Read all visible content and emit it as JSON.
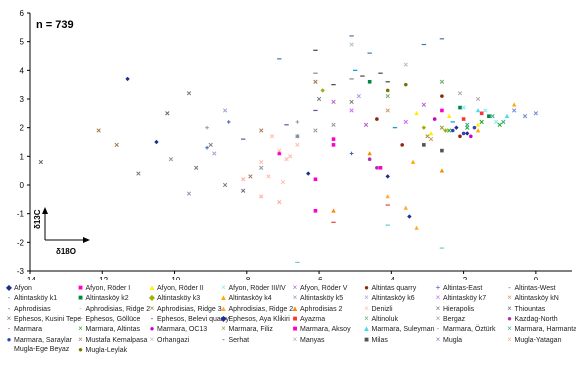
{
  "chart_data": {
    "type": "scatter",
    "annotation": "n = 739",
    "axis_key": {
      "y": "δ13C",
      "x": "δ18O"
    },
    "xlim": [
      -14,
      1
    ],
    "ylim": [
      -3,
      6
    ],
    "x_ticks": [
      "-14",
      "-12",
      "-10",
      "-8",
      "-6",
      "-4",
      "-2",
      "0"
    ],
    "y_ticks": [
      "-3",
      "-2",
      "-1",
      "0",
      "1",
      "2",
      "3",
      "4",
      "5",
      "6"
    ],
    "grid": false,
    "legend_position": "bottom",
    "series": [
      {
        "name": "Afyon",
        "color": "#1f2f8f",
        "marker": "◆",
        "points": [
          [
            -11.3,
            3.7
          ],
          [
            -10.5,
            1.5
          ],
          [
            -6.3,
            0.4
          ],
          [
            -3.5,
            -1.1
          ],
          [
            -4.1,
            0.3
          ]
        ]
      },
      {
        "name": "Afyon, Röder I",
        "color": "#ff00cc",
        "marker": "■",
        "points": [
          [
            -6.1,
            0.2
          ],
          [
            -5.6,
            1.6
          ],
          [
            -7.1,
            1.1
          ],
          [
            -4.3,
            0.6
          ]
        ]
      },
      {
        "name": "Afyon, Röder II",
        "color": "#ffee00",
        "marker": "▲",
        "points": [
          [
            -2.4,
            2.4
          ],
          [
            -1.6,
            2.1
          ],
          [
            -2.9,
            1.8
          ],
          [
            -3.3,
            2.5
          ]
        ]
      },
      {
        "name": "Afyon, Röder III/IV",
        "color": "#7fe7ff",
        "marker": "×",
        "points": [
          [
            -1.4,
            2.6
          ],
          [
            -1.1,
            2.2
          ],
          [
            -2.0,
            2.7
          ]
        ]
      },
      {
        "name": "Afyon, Röder V",
        "color": "#b05fd0",
        "marker": "×",
        "points": [
          [
            -4.7,
            2.1
          ],
          [
            -3.1,
            2.8
          ],
          [
            -5.6,
            2.9
          ]
        ]
      },
      {
        "name": "Altintas quarry",
        "color": "#8b2a0a",
        "marker": "●",
        "points": [
          [
            -2.6,
            3.1
          ],
          [
            -3.7,
            1.4
          ],
          [
            -4.4,
            2.3
          ],
          [
            -2.1,
            1.7
          ]
        ]
      },
      {
        "name": "Altintas-East",
        "color": "#3d5ebf",
        "marker": "+",
        "points": [
          [
            -6.6,
            1.7
          ],
          [
            -9.1,
            1.3
          ],
          [
            -5.1,
            1.1
          ],
          [
            -8.5,
            2.2
          ]
        ]
      },
      {
        "name": "Altintas-West",
        "color": "#7a4a9c",
        "marker": "-",
        "points": [
          [
            -6.9,
            2.1
          ],
          [
            -6.1,
            2.6
          ],
          [
            -8.1,
            1.6
          ]
        ]
      },
      {
        "name": "Altintasköy k1",
        "color": "#0099dd",
        "marker": "-",
        "points": [
          [
            -3.9,
            2.0
          ],
          [
            -2.3,
            2.2
          ],
          [
            -5.0,
            4.0
          ]
        ]
      },
      {
        "name": "Altintasköy k2",
        "color": "#008844",
        "marker": "■",
        "points": [
          [
            -2.1,
            2.7
          ],
          [
            -1.3,
            2.4
          ],
          [
            -4.6,
            3.6
          ]
        ]
      },
      {
        "name": "Altintasköy k3",
        "color": "#a0b000",
        "marker": "◆",
        "points": [
          [
            -3.1,
            2.0
          ],
          [
            -2.5,
            1.9
          ],
          [
            -5.9,
            3.3
          ]
        ]
      },
      {
        "name": "Altintasköy k4",
        "color": "#ffaa00",
        "marker": "▲",
        "points": [
          [
            -1.6,
            1.9
          ],
          [
            -3.4,
            0.8
          ],
          [
            -0.6,
            2.8
          ]
        ]
      },
      {
        "name": "Altintasköy k5",
        "color": "#8899aa",
        "marker": "×",
        "points": [
          [
            -10.1,
            0.9
          ],
          [
            -7.6,
            0.6
          ],
          [
            -9.6,
            -0.3
          ]
        ]
      },
      {
        "name": "Altintasköy k6",
        "color": "#aa99dd",
        "marker": "×",
        "points": [
          [
            -8.6,
            2.6
          ],
          [
            -4.9,
            3.1
          ],
          [
            -8.9,
            1.1
          ]
        ]
      },
      {
        "name": "Altintasköy k7",
        "color": "#cc66ff",
        "marker": "×",
        "points": [
          [
            -5.1,
            2.6
          ],
          [
            -3.6,
            2.2
          ]
        ]
      },
      {
        "name": "Altintasköy kN",
        "color": "#cc9966",
        "marker": "×",
        "points": [
          [
            -4.1,
            2.6
          ],
          [
            -2.9,
            1.6
          ]
        ]
      },
      {
        "name": "Aphrodisias",
        "color": "#4477aa",
        "marker": "-",
        "points": [
          [
            -2.6,
            5.1
          ],
          [
            -5.1,
            5.2
          ],
          [
            -7.1,
            4.4
          ],
          [
            -4.6,
            4.6
          ],
          [
            -3.1,
            4.9
          ]
        ]
      },
      {
        "name": "Aphrodisias, Ridge 2",
        "color": "#66cccc",
        "marker": "-",
        "points": [
          [
            -2.6,
            -2.2
          ],
          [
            -6.6,
            -2.7
          ],
          [
            -4.1,
            -1.4
          ]
        ]
      },
      {
        "name": "Aphrodisias, Ridge 3",
        "color": "#997744",
        "marker": "×",
        "points": [
          [
            -12.1,
            1.9
          ],
          [
            -6.1,
            3.6
          ],
          [
            -11.6,
            1.4
          ]
        ]
      },
      {
        "name": "Aphrodisias, Ridge 2",
        "color": "#ffaa33",
        "marker": "▲",
        "points": [
          [
            -3.3,
            -1.5
          ],
          [
            -4.1,
            -0.4
          ],
          [
            -3.6,
            -0.8
          ]
        ]
      },
      {
        "name": "Aphrodisias 2",
        "color": "#ff8800",
        "marker": "▲",
        "points": [
          [
            -5.6,
            -0.9
          ],
          [
            -4.6,
            1.1
          ],
          [
            -2.6,
            0.5
          ]
        ]
      },
      {
        "name": "Denizli",
        "color": "#ffbbaa",
        "marker": "×",
        "points": [
          [
            -7.1,
            1.2
          ],
          [
            -6.9,
            0.9
          ],
          [
            -7.4,
            0.3
          ],
          [
            -7.3,
            1.7
          ],
          [
            -6.6,
            1.4
          ],
          [
            -7.6,
            0.8
          ],
          [
            -7.0,
            0.1
          ],
          [
            -6.8,
            1.0
          ]
        ]
      },
      {
        "name": "Hierapolis",
        "color": "#777777",
        "marker": "×",
        "points": [
          [
            -6.0,
            3.0
          ],
          [
            -9.4,
            0.6
          ],
          [
            -11.0,
            0.4
          ],
          [
            -9.0,
            1.4
          ]
        ]
      },
      {
        "name": "Thiountas",
        "color": "#666677",
        "marker": "×",
        "points": [
          [
            -13.7,
            0.8
          ],
          [
            -10.2,
            2.5
          ],
          [
            -8.1,
            -0.2
          ]
        ]
      },
      {
        "name": "Ephesos, Kusini Tepe",
        "color": "#777777",
        "marker": "×",
        "points": [
          [
            -9.6,
            3.2
          ],
          [
            -8.6,
            0.0
          ],
          [
            -5.1,
            2.9
          ]
        ]
      },
      {
        "name": "Ephesos, Göllüce",
        "color": "#999999",
        "marker": "+",
        "points": [
          [
            -6.6,
            2.2
          ],
          [
            -9.1,
            2.0
          ]
        ]
      },
      {
        "name": "Ephesos, Belevi quarry",
        "color": "#444444",
        "marker": "-",
        "points": [
          [
            -5.6,
            3.5
          ],
          [
            -4.1,
            3.6
          ],
          [
            -6.1,
            4.7
          ]
        ]
      },
      {
        "name": "Ephesos, Aya Klikiri",
        "color": "#1f2f8f",
        "marker": "◆",
        "points": [
          [
            -2.2,
            2.0
          ],
          [
            -1.9,
            1.8
          ]
        ]
      },
      {
        "name": "Ayazma",
        "color": "#ff3333",
        "marker": "■",
        "points": [
          [
            -2.0,
            2.3
          ],
          [
            -1.5,
            2.5
          ]
        ]
      },
      {
        "name": "Altinoluk",
        "color": "#66aa66",
        "marker": "×",
        "points": [
          [
            -4.1,
            3.1
          ],
          [
            -2.6,
            3.6
          ]
        ]
      },
      {
        "name": "Bergaz",
        "color": "#999999",
        "marker": "×",
        "points": [
          [
            -6.6,
            1.7
          ],
          [
            -6.1,
            1.9
          ],
          [
            -5.6,
            2.1
          ]
        ]
      },
      {
        "name": "Kazdag-North",
        "color": "#aa33aa",
        "marker": "●",
        "points": [
          [
            -4.6,
            0.9
          ],
          [
            -4.4,
            0.6
          ]
        ]
      },
      {
        "name": "Marmara",
        "color": "#dd4444",
        "marker": "-",
        "points": [
          [
            -5.6,
            -1.3
          ],
          [
            -4.1,
            -0.7
          ]
        ]
      },
      {
        "name": "Marmara, Altintas",
        "color": "#22aa22",
        "marker": "×",
        "points": [
          [
            -1.9,
            2.0
          ],
          [
            -1.5,
            2.2
          ],
          [
            -2.4,
            1.9
          ],
          [
            -1.0,
            2.1
          ]
        ]
      },
      {
        "name": "Marmara, OC13",
        "color": "#cc00cc",
        "marker": "●",
        "points": [
          [
            -2.8,
            2.3
          ],
          [
            -1.8,
            1.7
          ]
        ]
      },
      {
        "name": "Marmara, Filiz",
        "color": "#999933",
        "marker": "×",
        "points": [
          [
            -2.6,
            2.0
          ],
          [
            -3.0,
            1.7
          ]
        ]
      },
      {
        "name": "Marmara, Aksoy",
        "color": "#ff00cc",
        "marker": "■",
        "points": [
          [
            -6.1,
            -0.9
          ],
          [
            -5.6,
            1.4
          ],
          [
            -2.6,
            2.6
          ]
        ]
      },
      {
        "name": "Marmara, Suleyman",
        "color": "#44ddee",
        "marker": "▲",
        "points": [
          [
            -1.6,
            2.6
          ],
          [
            -0.8,
            2.4
          ]
        ]
      },
      {
        "name": "Marmara, Öztürk",
        "color": "#888888",
        "marker": "-",
        "points": [
          [
            -6.1,
            3.9
          ],
          [
            -5.1,
            3.7
          ]
        ]
      },
      {
        "name": "Marmara, Harmantas",
        "color": "#33aa88",
        "marker": "×",
        "points": [
          [
            -1.9,
            2.1
          ],
          [
            -1.2,
            2.4
          ],
          [
            -0.9,
            2.2
          ]
        ]
      },
      {
        "name": "Marmara, Saraylar",
        "color": "#3344bb",
        "marker": "●",
        "points": [
          [
            -2.3,
            1.9
          ],
          [
            -2.0,
            1.8
          ],
          [
            -1.7,
            2.0
          ]
        ]
      },
      {
        "name": "Mustafa Kemalpasa",
        "color": "#aa7755",
        "marker": "×",
        "points": [
          [
            -7.6,
            1.9
          ],
          [
            -7.9,
            0.3
          ]
        ]
      },
      {
        "name": "Orhangazi",
        "color": "#bbbbbb",
        "marker": "×",
        "points": [
          [
            -5.1,
            4.9
          ],
          [
            -3.6,
            4.2
          ]
        ]
      },
      {
        "name": "Serhat",
        "color": "#444444",
        "marker": "-",
        "points": [
          [
            -4.8,
            3.8
          ],
          [
            -4.3,
            3.9
          ]
        ]
      },
      {
        "name": "Manyas",
        "color": "#aaaaaa",
        "marker": "×",
        "points": [
          [
            -2.1,
            3.2
          ],
          [
            -1.6,
            3.0
          ]
        ]
      },
      {
        "name": "Milas",
        "color": "#555555",
        "marker": "■",
        "points": [
          [
            -3.1,
            1.4
          ],
          [
            -2.6,
            1.2
          ]
        ]
      },
      {
        "name": "Mugla",
        "color": "#7788cc",
        "marker": "×",
        "points": [
          [
            -0.6,
            2.6
          ],
          [
            -0.3,
            2.4
          ],
          [
            0.0,
            2.5
          ]
        ]
      },
      {
        "name": "Mugla-Yatagan",
        "color": "#ffaa99",
        "marker": "×",
        "points": [
          [
            -7.6,
            -0.4
          ],
          [
            -8.1,
            0.2
          ],
          [
            -7.1,
            -0.6
          ]
        ]
      },
      {
        "name": "Mugla-Ege Beyaz",
        "color": "#ffffff",
        "marker": "",
        "points": []
      },
      {
        "name": "Mugla-Leylak",
        "color": "#777700",
        "marker": "●",
        "points": [
          [
            -4.1,
            3.3
          ],
          [
            -3.6,
            3.5
          ]
        ]
      }
    ]
  }
}
